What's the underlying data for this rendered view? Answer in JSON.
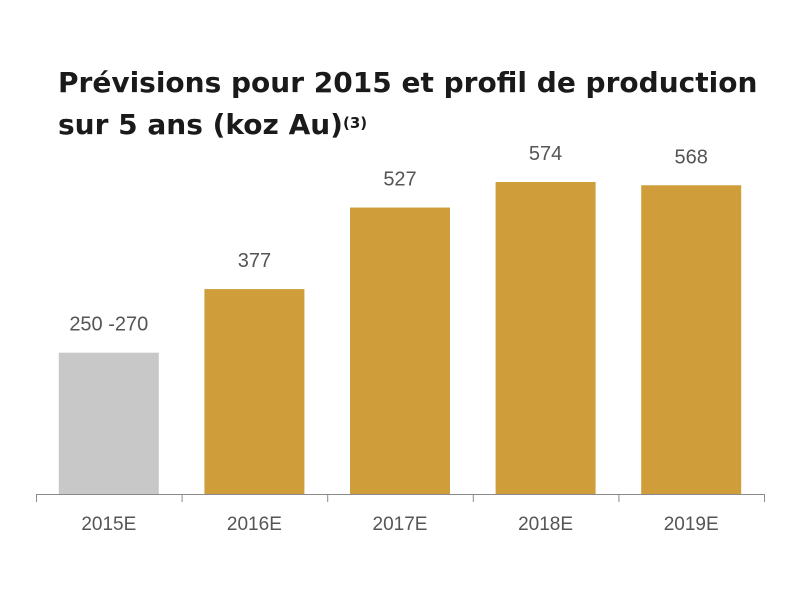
{
  "title": {
    "line1": "Prévisions pour 2015 et profil de production",
    "line2": "sur 5 ans (koz Au)",
    "superscript": "(3)"
  },
  "colors": {
    "estimate": "#c8c8c8",
    "bar": "#cf9e3a",
    "axis": "#8a8a8a",
    "text": "#555555"
  },
  "chart_data": {
    "type": "bar",
    "title": "Prévisions pour 2015 et profil de production sur 5 ans (koz Au)(3)",
    "xlabel": "",
    "ylabel": "",
    "grid": false,
    "legend": "none",
    "ylim": [
      0,
      620
    ],
    "categories": [
      "2015E",
      "2016E",
      "2017E",
      "2018E",
      "2019E"
    ],
    "values": [
      260,
      377,
      527,
      574,
      568
    ],
    "ranges": [
      [
        250,
        270
      ],
      null,
      null,
      null,
      null
    ],
    "data_labels": [
      "250 -270",
      "377",
      "527",
      "574",
      "568"
    ],
    "bar_styles": [
      "estimate",
      "bar",
      "bar",
      "bar",
      "bar"
    ]
  }
}
